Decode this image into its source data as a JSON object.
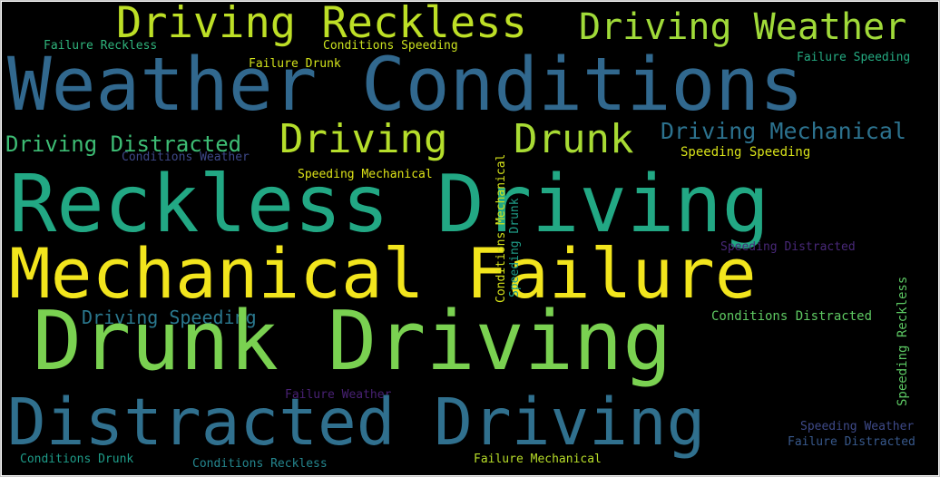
{
  "words": [
    {
      "id": "w01",
      "text": "Driving Reckless",
      "color": "#bddf26"
    },
    {
      "id": "w02",
      "text": "Driving Weather",
      "color": "#a0da39"
    },
    {
      "id": "w03",
      "text": "Failure Reckless",
      "color": "#2fb47c"
    },
    {
      "id": "w04",
      "text": "Conditions Speeding",
      "color": "#cae11f"
    },
    {
      "id": "w05",
      "text": "Failure Speeding",
      "color": "#25ab82"
    },
    {
      "id": "w06",
      "text": "Failure Drunk",
      "color": "#d2e21b"
    },
    {
      "id": "w07",
      "text": "Weather Conditions",
      "color": "#31688e"
    },
    {
      "id": "w08",
      "text": "Driving Distracted",
      "color": "#3dbc74"
    },
    {
      "id": "w09",
      "text": "Driving",
      "color": "#b5de2b"
    },
    {
      "id": "w10",
      "text": "Drunk",
      "color": "#a8db34"
    },
    {
      "id": "w11",
      "text": "Driving Mechanical",
      "color": "#2c728e"
    },
    {
      "id": "w12",
      "text": "Conditions Weather",
      "color": "#3e4989"
    },
    {
      "id": "w13",
      "text": "Speeding Speeding",
      "color": "#d8e219"
    },
    {
      "id": "w14",
      "text": "Speeding Mechanical",
      "color": "#dde318"
    },
    {
      "id": "w15",
      "text": "Reckless Driving",
      "color": "#22a884"
    },
    {
      "id": "w16",
      "text": "Mechanical Failure",
      "color": "#f2e51d"
    },
    {
      "id": "w17",
      "text": "Speeding Distracted",
      "color": "#482878"
    },
    {
      "id": "w18",
      "text": "Driving Speeding",
      "color": "#2a788e"
    },
    {
      "id": "w19",
      "text": "Conditions Distracted",
      "color": "#5ec962"
    },
    {
      "id": "w20",
      "text": "Drunk Driving",
      "color": "#7ad151"
    },
    {
      "id": "w21",
      "text": "Failure Weather",
      "color": "#482173"
    },
    {
      "id": "w22",
      "text": "Distracted Driving",
      "color": "#30708e"
    },
    {
      "id": "w23",
      "text": "Speeding Weather",
      "color": "#3e4a89"
    },
    {
      "id": "w24",
      "text": "Failure Distracted",
      "color": "#38598c"
    },
    {
      "id": "w25",
      "text": "Conditions Drunk",
      "color": "#1e9c89"
    },
    {
      "id": "w26",
      "text": "Conditions Reckless",
      "color": "#24868e"
    },
    {
      "id": "w27",
      "text": "Failure Mechanical",
      "color": "#b8de29"
    },
    {
      "id": "w28",
      "text": "Conditions Mechanical",
      "color": "#d5e21a"
    },
    {
      "id": "w29",
      "text": "Speeding Drunk",
      "color": "#1f9e89"
    },
    {
      "id": "w30",
      "text": "Speeding Reckless",
      "color": "#5cc863"
    }
  ]
}
